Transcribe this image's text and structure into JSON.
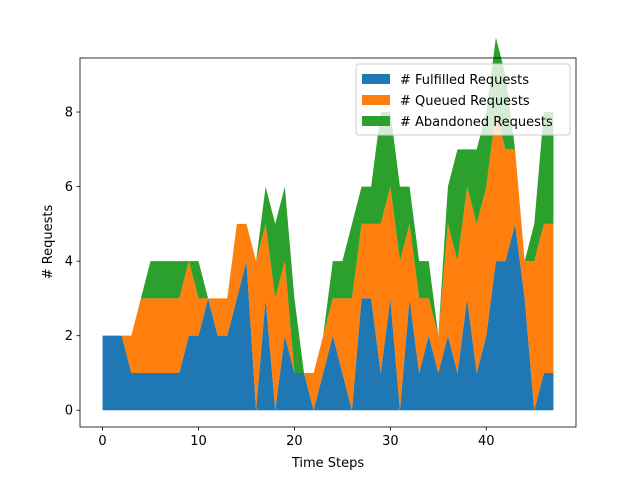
{
  "chart_data": {
    "type": "area",
    "stacked": true,
    "title": "",
    "xlabel": "Time Steps",
    "ylabel": "# Requests",
    "xlim": [
      -2.35,
      49.35
    ],
    "ylim": [
      -0.45,
      9.45
    ],
    "xticks": [
      0,
      10,
      20,
      30,
      40
    ],
    "yticks": [
      0,
      2,
      4,
      6,
      8
    ],
    "grid": false,
    "legend_position": "top-right",
    "x": [
      0,
      1,
      2,
      3,
      4,
      5,
      6,
      7,
      8,
      9,
      10,
      11,
      12,
      13,
      14,
      15,
      16,
      17,
      18,
      19,
      20,
      21,
      22,
      23,
      24,
      25,
      26,
      27,
      28,
      29,
      30,
      31,
      32,
      33,
      34,
      35,
      36,
      37,
      38,
      39,
      40,
      41,
      42,
      43,
      44,
      45,
      46,
      47
    ],
    "series": [
      {
        "name": "# Fulfilled Requests",
        "color": "#1f77b4",
        "values": [
          2,
          2,
          2,
          1,
          1,
          1,
          1,
          1,
          1,
          2,
          2,
          3,
          2,
          2,
          3,
          4,
          0,
          3,
          0,
          2,
          1,
          1,
          0,
          1,
          2,
          1,
          0,
          3,
          3,
          1,
          3,
          0,
          3,
          1,
          2,
          1,
          2,
          1,
          3,
          1,
          2,
          4,
          4,
          5,
          3,
          0,
          1,
          1
        ]
      },
      {
        "name": "# Queued Requests",
        "color": "#ff7f0e",
        "values": [
          0,
          0,
          0,
          1,
          2,
          2,
          2,
          2,
          2,
          2,
          1,
          0,
          1,
          1,
          2,
          1,
          4,
          2,
          3,
          2,
          0,
          0,
          1,
          1,
          1,
          2,
          3,
          2,
          2,
          4,
          3,
          4,
          2,
          2,
          1,
          1,
          3,
          3,
          3,
          4,
          4,
          4,
          3,
          2,
          1,
          4,
          4,
          4
        ]
      },
      {
        "name": "# Abandoned Requests",
        "color": "#2ca02c",
        "values": [
          0,
          0,
          0,
          0,
          0,
          1,
          1,
          1,
          1,
          0,
          1,
          0,
          0,
          0,
          0,
          0,
          0,
          1,
          2,
          2,
          2,
          0,
          0,
          0,
          1,
          1,
          2,
          1,
          1,
          3,
          2,
          2,
          1,
          1,
          1,
          0,
          1,
          3,
          1,
          2,
          2,
          2,
          2,
          0,
          0,
          1,
          3,
          3
        ]
      }
    ]
  }
}
